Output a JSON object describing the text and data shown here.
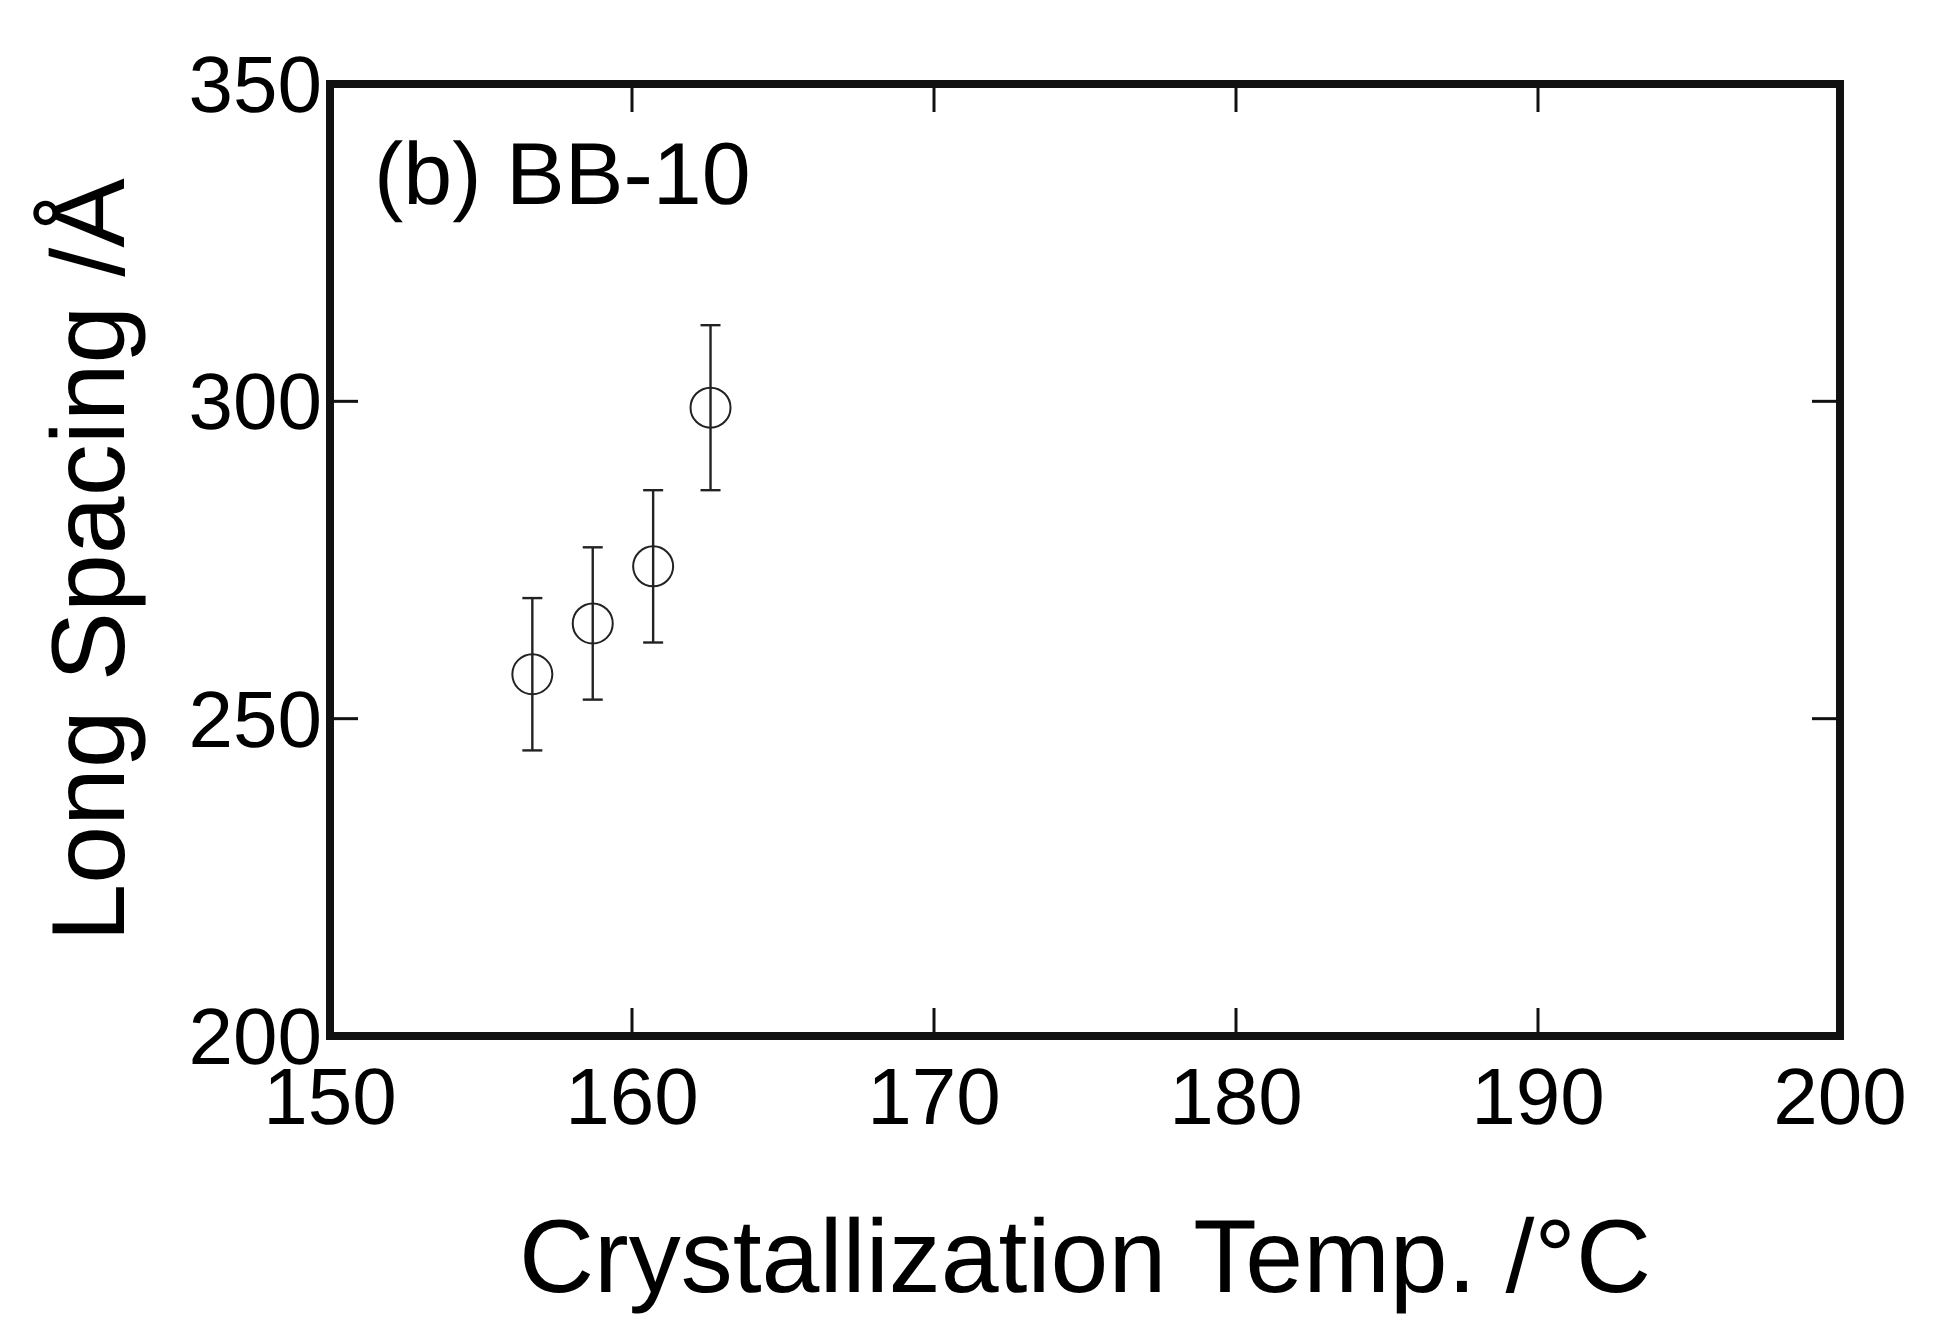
{
  "chart_data": {
    "type": "scatter",
    "xlabel": "Crystallization Temp. /°C",
    "ylabel": "Long Spacing /Å",
    "annotations": [
      "(b) BB-10"
    ],
    "x": [
      156.7,
      158.7,
      160.7,
      162.6
    ],
    "series": [
      {
        "color": "#222222",
        "values": [
          257,
          265,
          274,
          299
        ],
        "errors": [
          12,
          12,
          12,
          13
        ]
      }
    ],
    "xlim": [
      150,
      200
    ],
    "xticks": [
      150,
      160,
      170,
      180,
      190,
      200
    ],
    "ylim": [
      200,
      350
    ],
    "yticks": [
      200,
      250,
      300,
      350
    ],
    "marker": "circle",
    "grid": false
  }
}
